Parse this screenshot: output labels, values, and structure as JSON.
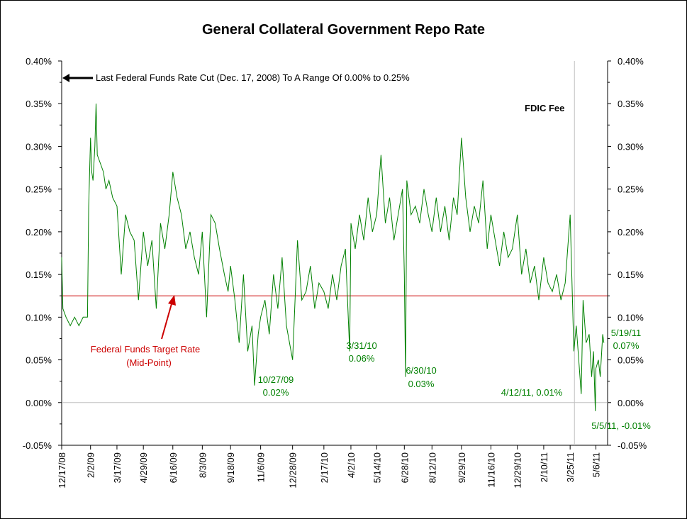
{
  "chart_data": {
    "type": "line",
    "title": "General Collateral Government Repo Rate",
    "xlabel": "",
    "ylabel": "",
    "ylim": [
      -0.05,
      0.4
    ],
    "y_unit": "%",
    "yticks": [
      "0.40%",
      "0.35%",
      "0.30%",
      "0.25%",
      "0.20%",
      "0.15%",
      "0.10%",
      "0.05%",
      "0.00%",
      "-0.05%"
    ],
    "xticks": [
      "12/17/08",
      "2/2/09",
      "3/17/09",
      "4/29/09",
      "6/16/09",
      "8/3/09",
      "9/18/09",
      "11/6/09",
      "12/28/09",
      "2/17/10",
      "4/2/10",
      "5/14/10",
      "6/28/10",
      "8/12/10",
      "9/29/10",
      "11/16/10",
      "12/29/10",
      "2/10/11",
      "3/25/11",
      "5/6/11"
    ],
    "reference_line": {
      "value": 0.125,
      "color": "#cc0000"
    },
    "series": [
      {
        "color": "#008000",
        "x": [
          "12/17/08",
          "12/19/08",
          "12/24/08",
          "12/31/08",
          "1/7/09",
          "1/14/09",
          "1/21/09",
          "1/28/09",
          "1/30/09",
          "2/2/09",
          "2/4/09",
          "2/6/09",
          "2/9/09",
          "2/11/09",
          "2/13/09",
          "2/18/09",
          "2/23/09",
          "2/27/09",
          "3/4/09",
          "3/10/09",
          "3/17/09",
          "3/24/09",
          "3/31/09",
          "4/7/09",
          "4/14/09",
          "4/21/09",
          "4/29/09",
          "5/6/09",
          "5/13/09",
          "5/20/09",
          "5/27/09",
          "6/3/09",
          "6/10/09",
          "6/16/09",
          "6/23/09",
          "6/30/09",
          "7/7/09",
          "7/14/09",
          "7/21/09",
          "7/28/09",
          "8/3/09",
          "8/10/09",
          "8/17/09",
          "8/24/09",
          "8/31/09",
          "9/8/09",
          "9/14/09",
          "9/18/09",
          "9/25/09",
          "10/2/09",
          "10/9/09",
          "10/16/09",
          "10/23/09",
          "10/27/09",
          "11/2/09",
          "11/6/09",
          "11/13/09",
          "11/20/09",
          "11/27/09",
          "12/4/09",
          "12/11/09",
          "12/18/09",
          "12/28/09",
          "1/5/10",
          "1/12/10",
          "1/19/10",
          "1/26/10",
          "2/2/10",
          "2/9/10",
          "2/17/10",
          "2/24/10",
          "3/3/10",
          "3/10/10",
          "3/17/10",
          "3/24/10",
          "3/31/10",
          "4/2/10",
          "4/9/10",
          "4/16/10",
          "4/23/10",
          "4/30/10",
          "5/7/10",
          "5/14/10",
          "5/21/10",
          "5/28/10",
          "6/4/10",
          "6/11/10",
          "6/18/10",
          "6/25/10",
          "6/28/10",
          "6/30/10",
          "7/2/10",
          "7/9/10",
          "7/16/10",
          "7/23/10",
          "7/30/10",
          "8/6/10",
          "8/12/10",
          "8/19/10",
          "8/26/10",
          "9/2/10",
          "9/9/10",
          "9/16/10",
          "9/22/10",
          "9/29/10",
          "10/6/10",
          "10/13/10",
          "10/20/10",
          "10/27/10",
          "11/3/10",
          "11/10/10",
          "11/16/10",
          "11/23/10",
          "11/30/10",
          "12/7/10",
          "12/14/10",
          "12/21/10",
          "12/29/10",
          "1/5/11",
          "1/12/11",
          "1/19/11",
          "1/26/11",
          "2/2/11",
          "2/10/11",
          "2/17/11",
          "2/24/11",
          "3/3/11",
          "3/10/11",
          "3/17/11",
          "3/25/11",
          "3/31/11",
          "4/4/11",
          "4/8/11",
          "4/12/11",
          "4/15/11",
          "4/20/11",
          "4/25/11",
          "4/29/11",
          "5/2/11",
          "5/5/11",
          "5/6/11",
          "5/10/11",
          "5/13/11",
          "5/17/11",
          "5/19/11"
        ],
        "values": [
          0.17,
          0.11,
          0.1,
          0.09,
          0.1,
          0.09,
          0.1,
          0.1,
          0.23,
          0.31,
          0.27,
          0.26,
          0.3,
          0.35,
          0.29,
          0.28,
          0.27,
          0.25,
          0.26,
          0.24,
          0.23,
          0.15,
          0.22,
          0.2,
          0.19,
          0.12,
          0.2,
          0.16,
          0.19,
          0.11,
          0.21,
          0.18,
          0.22,
          0.27,
          0.24,
          0.22,
          0.18,
          0.2,
          0.17,
          0.15,
          0.2,
          0.1,
          0.22,
          0.21,
          0.18,
          0.15,
          0.13,
          0.16,
          0.12,
          0.07,
          0.15,
          0.06,
          0.09,
          0.02,
          0.08,
          0.1,
          0.12,
          0.08,
          0.15,
          0.11,
          0.17,
          0.09,
          0.05,
          0.19,
          0.12,
          0.13,
          0.16,
          0.11,
          0.14,
          0.13,
          0.11,
          0.15,
          0.12,
          0.16,
          0.18,
          0.06,
          0.21,
          0.18,
          0.22,
          0.19,
          0.24,
          0.2,
          0.22,
          0.29,
          0.21,
          0.24,
          0.19,
          0.22,
          0.25,
          0.15,
          0.03,
          0.26,
          0.22,
          0.23,
          0.21,
          0.25,
          0.22,
          0.2,
          0.24,
          0.2,
          0.23,
          0.19,
          0.24,
          0.22,
          0.31,
          0.24,
          0.2,
          0.23,
          0.21,
          0.26,
          0.18,
          0.22,
          0.19,
          0.16,
          0.2,
          0.17,
          0.18,
          0.22,
          0.15,
          0.18,
          0.14,
          0.16,
          0.12,
          0.17,
          0.14,
          0.13,
          0.15,
          0.12,
          0.14,
          0.22,
          0.06,
          0.09,
          0.05,
          0.01,
          0.12,
          0.07,
          0.08,
          0.03,
          0.06,
          -0.01,
          0.04,
          0.05,
          0.03,
          0.08,
          0.07
        ]
      }
    ],
    "annotations": [
      {
        "id": "fed-cut",
        "text": "Last Federal Funds Rate Cut (Dec. 17, 2008) To A Range Of 0.00% to 0.25%"
      },
      {
        "id": "fdic",
        "text": "FDIC Fee"
      },
      {
        "id": "fed-target-1",
        "text": "Federal Funds Target Rate"
      },
      {
        "id": "fed-target-2",
        "text": "(Mid-Point)"
      },
      {
        "id": "low-1027-date",
        "text": "10/27/09"
      },
      {
        "id": "low-1027-val",
        "text": "0.02%"
      },
      {
        "id": "low-331-date",
        "text": "3/31/10"
      },
      {
        "id": "low-331-val",
        "text": "0.06%"
      },
      {
        "id": "low-630-date",
        "text": "6/30/10"
      },
      {
        "id": "low-630-val",
        "text": "0.03%"
      },
      {
        "id": "low-412",
        "text": "4/12/11, 0.01%"
      },
      {
        "id": "last-519-date",
        "text": "5/19/11"
      },
      {
        "id": "last-519-val",
        "text": "0.07%"
      },
      {
        "id": "low-55",
        "text": "5/5/11, -0.01%"
      }
    ]
  },
  "colors": {
    "series": "#008000",
    "reference_line": "#cc0000",
    "fed_text": "#cc0000",
    "annotation_green": "#008000",
    "zero_line": "#c0c0c0",
    "fdic_line": "#c0c0c0"
  }
}
